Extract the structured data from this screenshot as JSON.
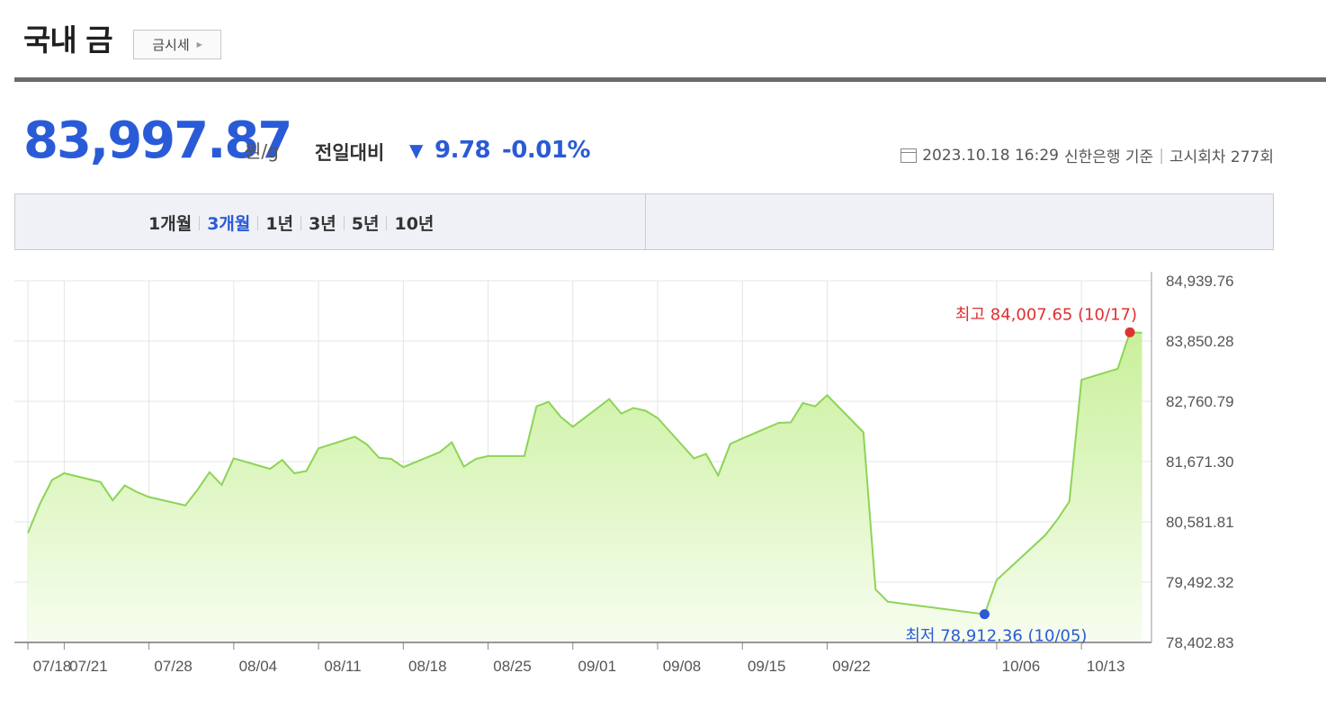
{
  "header": {
    "title": "국내 금",
    "price_button_label": "금시세",
    "price": "83,997.87",
    "unit": "원/g",
    "compare_label": "전일대비",
    "change_value": "9.78",
    "change_percent": "-0.01%",
    "timestamp": "2023.10.18 16:29",
    "source": "신한은행 기준",
    "notice_count": "고시회차 277회"
  },
  "tabs": [
    {
      "label": "1개월",
      "active": false
    },
    {
      "label": "3개월",
      "active": true
    },
    {
      "label": "1년",
      "active": false
    },
    {
      "label": "3년",
      "active": false
    },
    {
      "label": "5년",
      "active": false
    },
    {
      "label": "10년",
      "active": false
    }
  ],
  "colors": {
    "accent": "#2a5bd7",
    "line": "#8dd456",
    "fill_top": "#c9f09a",
    "fill_bottom": "#f7fdf0",
    "max_marker": "#e03030",
    "min_marker": "#2a5bd7"
  },
  "chart_data": {
    "type": "area",
    "xlim": [
      "2023-07-18",
      "2023-10-17"
    ],
    "ylim": [
      78402.83,
      84939.76
    ],
    "yticks": [
      {
        "value": 84939.76,
        "label": "84,939.76"
      },
      {
        "value": 83850.28,
        "label": "83,850.28"
      },
      {
        "value": 82760.79,
        "label": "82,760.79"
      },
      {
        "value": 81671.3,
        "label": "81,671.30"
      },
      {
        "value": 80581.81,
        "label": "80,581.81"
      },
      {
        "value": 79492.32,
        "label": "79,492.32"
      },
      {
        "value": 78402.83,
        "label": "78,402.83"
      }
    ],
    "xticks": [
      {
        "x": "2023-07-18",
        "label": "07/18"
      },
      {
        "x": "2023-07-21",
        "label": "07/21"
      },
      {
        "x": "2023-07-28",
        "label": "07/28"
      },
      {
        "x": "2023-08-04",
        "label": "08/04"
      },
      {
        "x": "2023-08-11",
        "label": "08/11"
      },
      {
        "x": "2023-08-18",
        "label": "08/18"
      },
      {
        "x": "2023-08-25",
        "label": "08/25"
      },
      {
        "x": "2023-09-01",
        "label": "09/01"
      },
      {
        "x": "2023-09-08",
        "label": "09/08"
      },
      {
        "x": "2023-09-15",
        "label": "09/15"
      },
      {
        "x": "2023-09-22",
        "label": "09/22"
      },
      {
        "x": "2023-10-06",
        "label": "10/06"
      },
      {
        "x": "2023-10-13",
        "label": "10/13"
      }
    ],
    "grid": true,
    "series": [
      {
        "points": [
          [
            "2023-07-18",
            80380
          ],
          [
            "2023-07-19",
            80910
          ],
          [
            "2023-07-20",
            81340
          ],
          [
            "2023-07-21",
            81460
          ],
          [
            "2023-07-24",
            81300
          ],
          [
            "2023-07-25",
            80970
          ],
          [
            "2023-07-26",
            81240
          ],
          [
            "2023-07-27",
            81120
          ],
          [
            "2023-07-28",
            81030
          ],
          [
            "2023-07-31",
            80880
          ],
          [
            "2023-08-01",
            81160
          ],
          [
            "2023-08-02",
            81480
          ],
          [
            "2023-08-03",
            81250
          ],
          [
            "2023-08-04",
            81730
          ],
          [
            "2023-08-07",
            81540
          ],
          [
            "2023-08-08",
            81700
          ],
          [
            "2023-08-09",
            81460
          ],
          [
            "2023-08-10",
            81500
          ],
          [
            "2023-08-11",
            81910
          ],
          [
            "2023-08-14",
            82120
          ],
          [
            "2023-08-15",
            81980
          ],
          [
            "2023-08-16",
            81740
          ],
          [
            "2023-08-17",
            81720
          ],
          [
            "2023-08-18",
            81570
          ],
          [
            "2023-08-21",
            81840
          ],
          [
            "2023-08-22",
            82020
          ],
          [
            "2023-08-23",
            81580
          ],
          [
            "2023-08-24",
            81720
          ],
          [
            "2023-08-25",
            81770
          ],
          [
            "2023-08-28",
            81770
          ],
          [
            "2023-08-29",
            82670
          ],
          [
            "2023-08-30",
            82750
          ],
          [
            "2023-08-31",
            82480
          ],
          [
            "2023-09-01",
            82300
          ],
          [
            "2023-09-04",
            82800
          ],
          [
            "2023-09-05",
            82540
          ],
          [
            "2023-09-06",
            82640
          ],
          [
            "2023-09-07",
            82590
          ],
          [
            "2023-09-08",
            82460
          ],
          [
            "2023-09-11",
            81730
          ],
          [
            "2023-09-12",
            81810
          ],
          [
            "2023-09-13",
            81420
          ],
          [
            "2023-09-14",
            81990
          ],
          [
            "2023-09-15",
            82090
          ],
          [
            "2023-09-18",
            82370
          ],
          [
            "2023-09-19",
            82380
          ],
          [
            "2023-09-20",
            82730
          ],
          [
            "2023-09-21",
            82670
          ],
          [
            "2023-09-22",
            82870
          ],
          [
            "2023-09-25",
            82200
          ],
          [
            "2023-09-26",
            79360
          ],
          [
            "2023-09-27",
            79140
          ],
          [
            "2023-10-05",
            78912.36
          ],
          [
            "2023-10-06",
            79530
          ],
          [
            "2023-10-10",
            80340
          ],
          [
            "2023-10-11",
            80620
          ],
          [
            "2023-10-12",
            80950
          ],
          [
            "2023-10-13",
            83150
          ],
          [
            "2023-10-16",
            83350
          ],
          [
            "2023-10-17",
            84007.65
          ],
          [
            "2023-10-18",
            83997.87
          ]
        ]
      }
    ],
    "annotations": {
      "max": {
        "label": "최고 84,007.65 (10/17)",
        "x": "2023-10-17",
        "y": 84007.65
      },
      "min": {
        "label": "최저 78,912.36 (10/05)",
        "x": "2023-10-05",
        "y": 78912.36
      }
    }
  }
}
